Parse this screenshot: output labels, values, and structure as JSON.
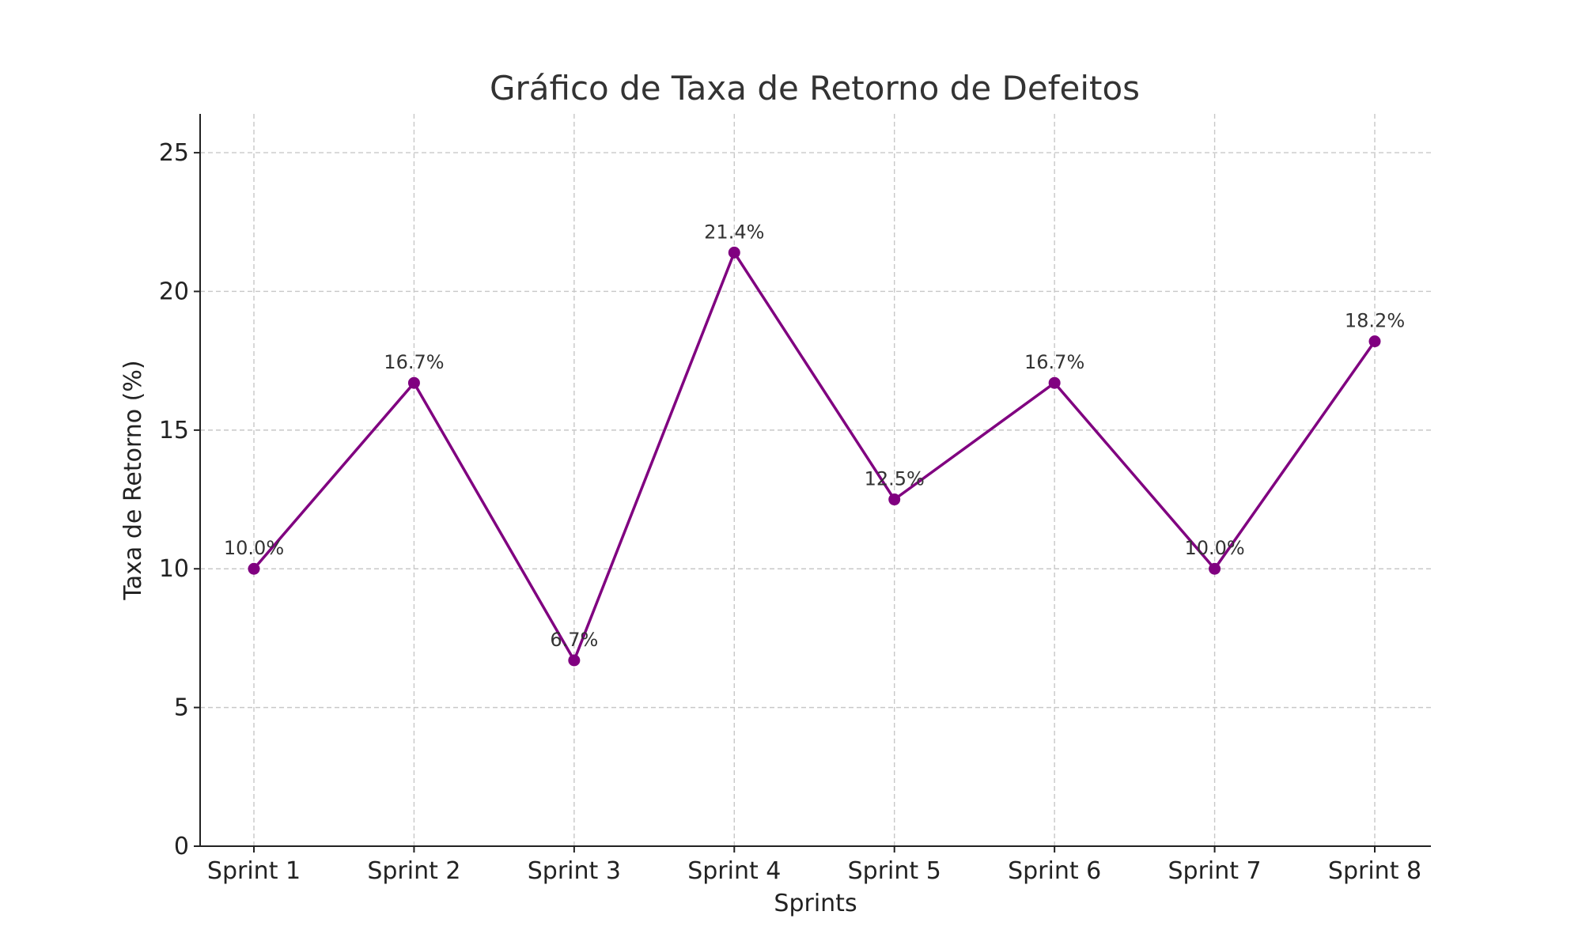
{
  "chart_data": {
    "type": "line",
    "title": "Gráfico de Taxa de Retorno de Defeitos",
    "xlabel": "Sprints",
    "ylabel": "Taxa de Retorno (%)",
    "categories": [
      "Sprint 1",
      "Sprint 2",
      "Sprint 3",
      "Sprint 4",
      "Sprint 5",
      "Sprint 6",
      "Sprint 7",
      "Sprint 8"
    ],
    "values": [
      10.0,
      16.7,
      6.7,
      21.4,
      12.5,
      16.7,
      10.0,
      18.2
    ],
    "data_labels": [
      "10.0%",
      "16.7%",
      "6.7%",
      "21.4%",
      "12.5%",
      "16.7%",
      "10.0%",
      "18.2%"
    ],
    "yticks": [
      0,
      5,
      10,
      15,
      20,
      25
    ],
    "ylim": [
      0,
      26.4
    ],
    "grid": true,
    "marker": "circle",
    "color": "#800080"
  }
}
